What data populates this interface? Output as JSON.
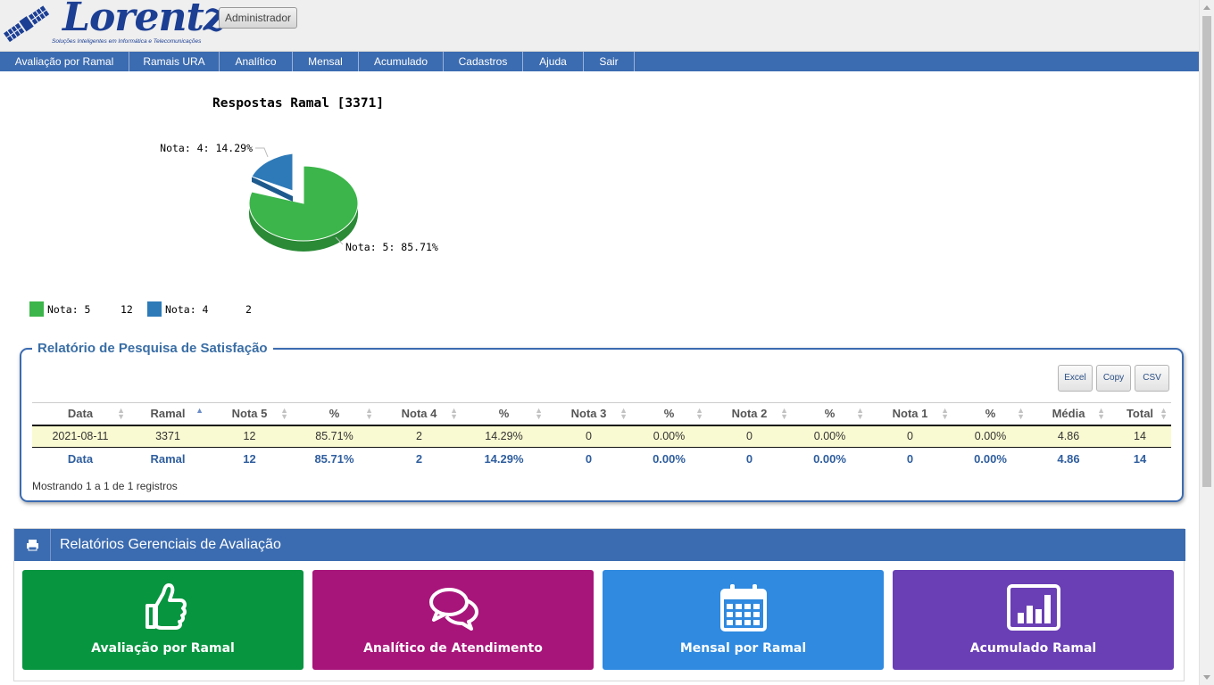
{
  "header": {
    "logo_text": "Lorentz",
    "logo_tagline": "Soluções Inteligentes em Informática e Telecomunicações",
    "user_button": "Administrador"
  },
  "menu": [
    "Avaliação por Ramal",
    "Ramais URA",
    "Analítico",
    "Mensal",
    "Acumulado",
    "Cadastros",
    "Ajuda",
    "Sair"
  ],
  "chart_data": {
    "type": "pie",
    "title": "Respostas Ramal [3371]",
    "slices": [
      {
        "label": "Nota: 5",
        "value": 12,
        "percent_label": "Nota: 5: 85.71%",
        "color": "#3cb54a"
      },
      {
        "label": "Nota: 4",
        "value": 2,
        "percent_label": "Nota: 4: 14.29%",
        "color": "#2e7ab8"
      }
    ],
    "legend_position": "bottom-left"
  },
  "report": {
    "title": "Relatório de Pesquisa de Satisfação",
    "buttons": {
      "excel": "Excel",
      "copy": "Copy",
      "csv": "CSV"
    },
    "columns": [
      "Data",
      "Ramal",
      "Nota 5",
      "%",
      "Nota 4",
      "%",
      "Nota 3",
      "%",
      "Nota 2",
      "%",
      "Nota 1",
      "%",
      "Média",
      "Total"
    ],
    "rows": [
      [
        "2021-08-11",
        "3371",
        "12",
        "85.71%",
        "2",
        "14.29%",
        "0",
        "0.00%",
        "0",
        "0.00%",
        "0",
        "0.00%",
        "4.86",
        "14"
      ]
    ],
    "footer": [
      "Data",
      "Ramal",
      "12",
      "85.71%",
      "2",
      "14.29%",
      "0",
      "0.00%",
      "0",
      "0.00%",
      "0",
      "0.00%",
      "4.86",
      "14"
    ],
    "info": "Mostrando 1 a 1 de 1 registros"
  },
  "panel": {
    "title": "Relatórios Gerenciais de Avaliação",
    "tiles": [
      {
        "label": "Avaliação por Ramal",
        "color": "#079540",
        "icon": "thumbs-up-icon"
      },
      {
        "label": "Analítico de Atendimento",
        "color": "#a8157a",
        "icon": "chat-icon"
      },
      {
        "label": "Mensal por Ramal",
        "color": "#2f8ae0",
        "icon": "calendar-icon"
      },
      {
        "label": "Acumulado Ramal",
        "color": "#6a3fb5",
        "icon": "bar-chart-icon"
      }
    ]
  }
}
